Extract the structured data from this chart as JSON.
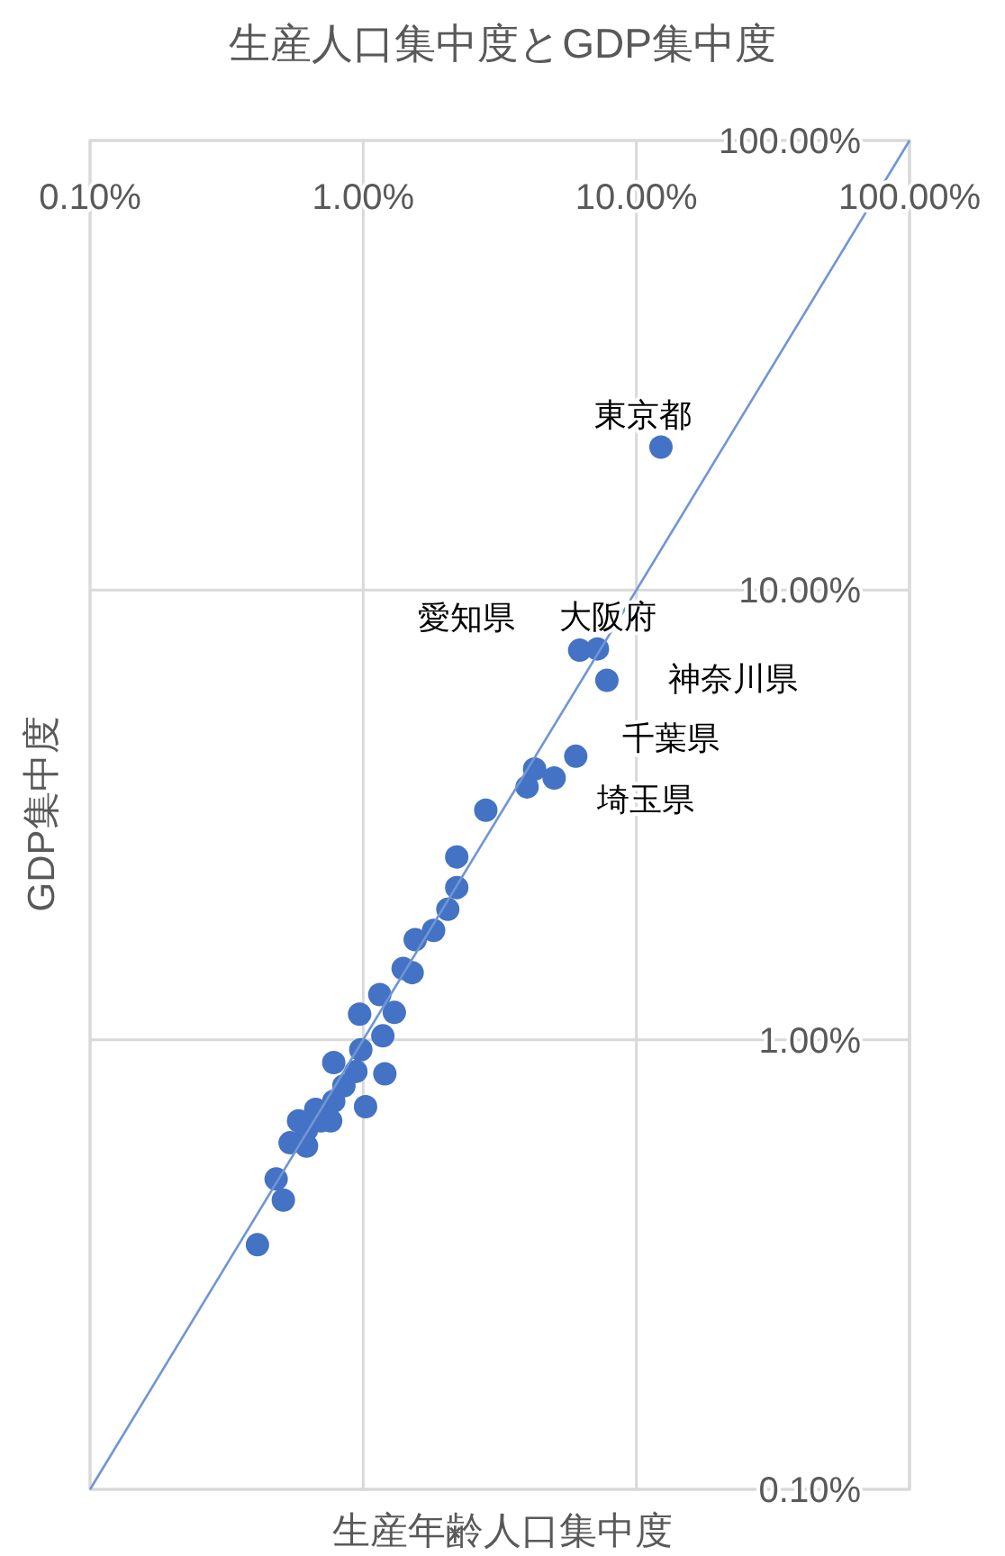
{
  "chart_data": {
    "type": "scatter",
    "title": "生産人口集中度とGDP集中度",
    "xlabel": "生産年齢人口集中度",
    "ylabel": "GDP集中度",
    "log": "xy",
    "grid": true,
    "marker": "circle",
    "xlim": [
      0.1,
      100
    ],
    "ylim": [
      0.1,
      100
    ],
    "xticks": [
      {
        "value": 0.1,
        "label": "0.10%"
      },
      {
        "value": 1,
        "label": "1.00%"
      },
      {
        "value": 10,
        "label": "10.00%"
      },
      {
        "value": 100,
        "label": "100.00%"
      }
    ],
    "yticks": [
      {
        "value": 0.1,
        "label": "0.10%"
      },
      {
        "value": 1,
        "label": "1.00%"
      },
      {
        "value": 10,
        "label": "10.00%"
      },
      {
        "value": 100,
        "label": "100.00%"
      }
    ],
    "series": [
      {
        "color": "#4472c4",
        "x": [
          12.3,
          6.2,
          7.2,
          7.8,
          6.0,
          5.0,
          4.24,
          3.98,
          2.81,
          2.2,
          2.2,
          2.04,
          1.81,
          1.55,
          1.4,
          1.51,
          1.15,
          1.3,
          0.97,
          1.18,
          0.98,
          0.78,
          0.94,
          1.2,
          0.85,
          0.78,
          1.02,
          0.67,
          0.76,
          0.58,
          0.7,
          0.62,
          0.54,
          0.62,
          0.48,
          0.51,
          0.41
        ],
        "values": [
          20.8,
          7.35,
          7.4,
          6.3,
          4.27,
          3.82,
          4.0,
          3.65,
          3.24,
          2.55,
          2.18,
          1.95,
          1.75,
          1.67,
          1.44,
          1.41,
          1.26,
          1.15,
          1.14,
          1.02,
          0.95,
          0.89,
          0.85,
          0.84,
          0.79,
          0.73,
          0.71,
          0.7,
          0.66,
          0.66,
          0.66,
          0.63,
          0.59,
          0.58,
          0.49,
          0.44,
          0.35
        ]
      },
      {
        "type": "line",
        "marker": "none",
        "color": "#6f95d6",
        "x": [
          0.1,
          100
        ],
        "values": [
          0.1,
          100
        ]
      }
    ],
    "annotations": [
      {
        "text": "東京都",
        "x": 12.3,
        "y": 20.8
      },
      {
        "text": "愛知県",
        "x": 6.2,
        "y": 7.35
      },
      {
        "text": "大阪府",
        "x": 7.2,
        "y": 7.4
      },
      {
        "text": "神奈川県",
        "x": 7.8,
        "y": 6.3
      },
      {
        "text": "千葉県",
        "x": 6.0,
        "y": 4.27
      },
      {
        "text": "埼玉県",
        "x": 5.0,
        "y": 3.82
      }
    ]
  }
}
